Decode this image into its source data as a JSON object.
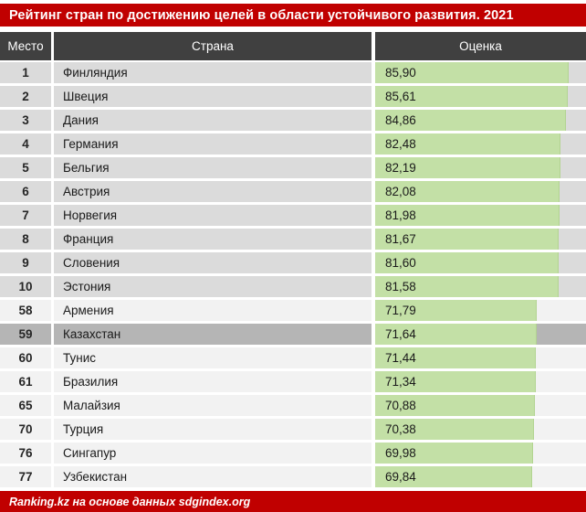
{
  "title": "Рейтинг стран по достижению целей в области устойчивого развития. 2021",
  "footer": "Ranking.kz на основе данных sdgindex.org",
  "colors": {
    "accent_red": "#c00000",
    "header_bg": "#404040",
    "row_top_block_bg": "#dbdbdb",
    "row_other_block_bg": "#f2f2f2",
    "row_highlight_bg": "#b5b5b5",
    "score_bar_green": "#c3e0a6",
    "text_dark": "#1a1a1a",
    "text_white": "#ffffff"
  },
  "chart_data": {
    "type": "table",
    "title": "Рейтинг стран по достижению целей в области устойчивого развития. 2021",
    "columns": [
      "Место",
      "Страна",
      "Оценка"
    ],
    "bar_value_range": [
      0,
      94.2
    ],
    "rows": [
      {
        "rank": "1",
        "country": "Финляндия",
        "score": "85,90",
        "value": 85.9,
        "group": "top10",
        "highlight": false
      },
      {
        "rank": "2",
        "country": "Швеция",
        "score": "85,61",
        "value": 85.61,
        "group": "top10",
        "highlight": false
      },
      {
        "rank": "3",
        "country": "Дания",
        "score": "84,86",
        "value": 84.86,
        "group": "top10",
        "highlight": false
      },
      {
        "rank": "4",
        "country": "Германия",
        "score": "82,48",
        "value": 82.48,
        "group": "top10",
        "highlight": false
      },
      {
        "rank": "5",
        "country": "Бельгия",
        "score": "82,19",
        "value": 82.19,
        "group": "top10",
        "highlight": false
      },
      {
        "rank": "6",
        "country": "Австрия",
        "score": "82,08",
        "value": 82.08,
        "group": "top10",
        "highlight": false
      },
      {
        "rank": "7",
        "country": "Норвегия",
        "score": "81,98",
        "value": 81.98,
        "group": "top10",
        "highlight": false
      },
      {
        "rank": "8",
        "country": "Франция",
        "score": "81,67",
        "value": 81.67,
        "group": "top10",
        "highlight": false
      },
      {
        "rank": "9",
        "country": "Словения",
        "score": "81,60",
        "value": 81.6,
        "group": "top10",
        "highlight": false
      },
      {
        "rank": "10",
        "country": "Эстония",
        "score": "81,58",
        "value": 81.58,
        "group": "top10",
        "highlight": false
      },
      {
        "rank": "58",
        "country": "Армения",
        "score": "71,79",
        "value": 71.79,
        "group": "other",
        "highlight": false
      },
      {
        "rank": "59",
        "country": "Казахстан",
        "score": "71,64",
        "value": 71.64,
        "group": "other",
        "highlight": true
      },
      {
        "rank": "60",
        "country": "Тунис",
        "score": "71,44",
        "value": 71.44,
        "group": "other",
        "highlight": false
      },
      {
        "rank": "61",
        "country": "Бразилия",
        "score": "71,34",
        "value": 71.34,
        "group": "other",
        "highlight": false
      },
      {
        "rank": "65",
        "country": "Малайзия",
        "score": "70,88",
        "value": 70.88,
        "group": "other",
        "highlight": false
      },
      {
        "rank": "70",
        "country": "Турция",
        "score": "70,38",
        "value": 70.38,
        "group": "other",
        "highlight": false
      },
      {
        "rank": "76",
        "country": "Сингапур",
        "score": "69,98",
        "value": 69.98,
        "group": "other",
        "highlight": false
      },
      {
        "rank": "77",
        "country": "Узбекистан",
        "score": "69,84",
        "value": 69.84,
        "group": "other",
        "highlight": false
      }
    ]
  },
  "header": {
    "rank_label": "Место",
    "country_label": "Страна",
    "score_label": "Оценка"
  }
}
